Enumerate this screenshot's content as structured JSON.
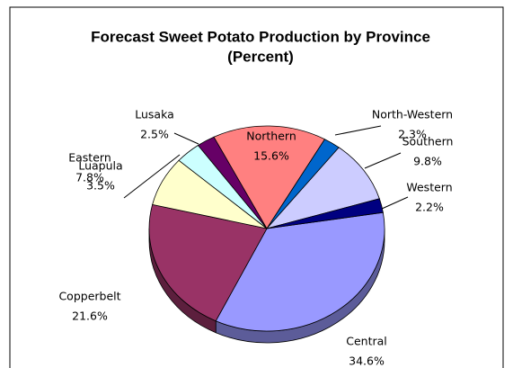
{
  "chart_data": {
    "type": "pie",
    "title": "Forecast Sweet Potato Production by Province",
    "subtitle": "(Percent)",
    "categories": [
      "Central",
      "Copperbelt",
      "Eastern",
      "Luapula",
      "Lusaka",
      "Northern",
      "North-Western",
      "Southern",
      "Western"
    ],
    "values": [
      34.6,
      21.6,
      7.8,
      3.5,
      2.5,
      15.6,
      2.3,
      9.8,
      2.2
    ],
    "value_labels": [
      "34.6%",
      "21.6%",
      "7.8%",
      "3.5%",
      "2.5%",
      "15.6%",
      "2.3%",
      "9.8%",
      "2.2%"
    ],
    "colors": [
      "#9999ff",
      "#993366",
      "#ffffcc",
      "#ccffff",
      "#660066",
      "#ff8080",
      "#0066cc",
      "#ccccff",
      "#000080"
    ]
  }
}
